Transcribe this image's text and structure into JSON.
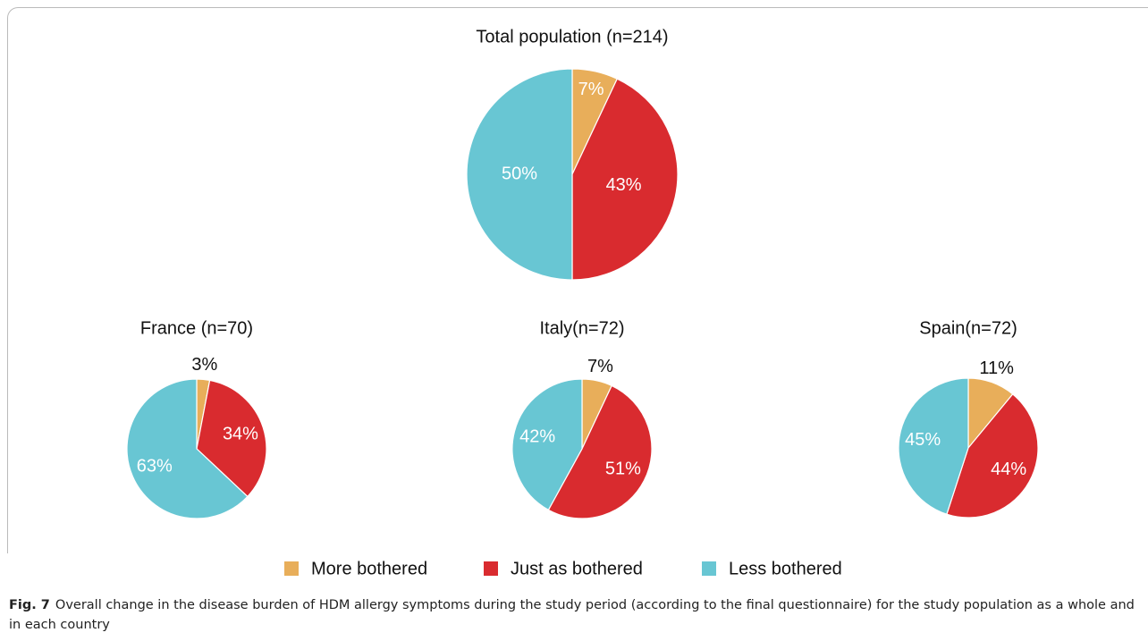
{
  "chart_data": [
    {
      "type": "pie",
      "title": "Total population (n=214)",
      "categories": [
        "More bothered",
        "Just as bothered",
        "Less bothered"
      ],
      "values": [
        7,
        43,
        50
      ],
      "value_labels": [
        "7%",
        "43%",
        "50%"
      ],
      "colors": [
        "#e8ae5a",
        "#d92b2f",
        "#68c6d3"
      ]
    },
    {
      "type": "pie",
      "title": "France (n=70)",
      "categories": [
        "More bothered",
        "Just as bothered",
        "Less bothered"
      ],
      "values": [
        3,
        34,
        63
      ],
      "value_labels": [
        "3%",
        "34%",
        "63%"
      ],
      "colors": [
        "#e8ae5a",
        "#d92b2f",
        "#68c6d3"
      ]
    },
    {
      "type": "pie",
      "title": "Italy(n=72)",
      "categories": [
        "More bothered",
        "Just as bothered",
        "Less bothered"
      ],
      "values": [
        7,
        51,
        42
      ],
      "value_labels": [
        "7%",
        "51%",
        "42%"
      ],
      "colors": [
        "#e8ae5a",
        "#d92b2f",
        "#68c6d3"
      ]
    },
    {
      "type": "pie",
      "title": "Spain(n=72)",
      "categories": [
        "More bothered",
        "Just as bothered",
        "Less bothered"
      ],
      "values": [
        11,
        44,
        45
      ],
      "value_labels": [
        "11%",
        "44%",
        "45%"
      ],
      "colors": [
        "#e8ae5a",
        "#d92b2f",
        "#68c6d3"
      ]
    }
  ],
  "caption": {
    "label": "Fig. 7",
    "text": "Overall change in the disease burden of HDM allergy symptoms during the study period (according to the final questionnaire) for the study population as a whole and in each country"
  }
}
